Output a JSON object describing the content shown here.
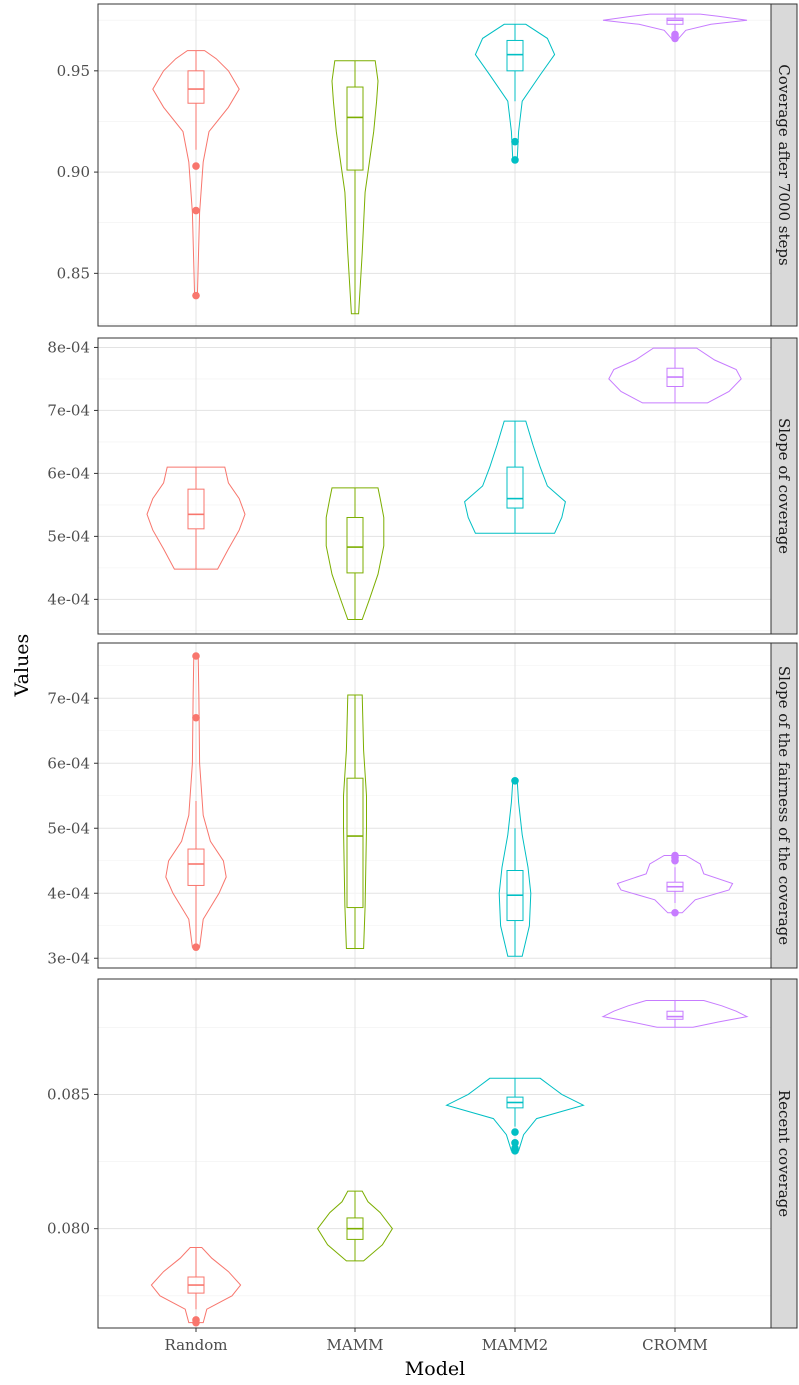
{
  "chart_data": {
    "type": "violin",
    "xlabel": "Model",
    "ylabel": "Values",
    "categories": [
      "Random",
      "MAMM",
      "MAMM2",
      "CROMM"
    ],
    "colors": {
      "Random": "#F8766D",
      "MAMM": "#7CAE00",
      "MAMM2": "#00BFC4",
      "CROMM": "#C77CFF"
    },
    "grid": true,
    "facets": [
      {
        "label": "Coverage after 7000 steps",
        "ylim": [
          0.824,
          0.983
        ],
        "yticks": [
          0.85,
          0.9,
          0.95
        ],
        "yticklabels": [
          "0.85",
          "0.90",
          "0.95"
        ],
        "series": [
          {
            "name": "Random",
            "min": 0.839,
            "max": 0.96,
            "q1": 0.934,
            "median": 0.941,
            "q3": 0.95,
            "whisker_low": 0.911,
            "whisker_high": 0.96,
            "outliers": [
              0.903,
              0.881,
              0.839
            ],
            "density": [
              [
                0.839,
                0.02
              ],
              [
                0.88,
                0.05
              ],
              [
                0.905,
                0.1
              ],
              [
                0.92,
                0.18
              ],
              [
                0.932,
                0.45
              ],
              [
                0.941,
                0.6
              ],
              [
                0.95,
                0.45
              ],
              [
                0.956,
                0.28
              ],
              [
                0.96,
                0.12
              ]
            ]
          },
          {
            "name": "MAMM",
            "min": 0.83,
            "max": 0.955,
            "q1": 0.901,
            "median": 0.927,
            "q3": 0.942,
            "whisker_low": 0.83,
            "whisker_high": 0.955,
            "outliers": [],
            "density": [
              [
                0.83,
                0.05
              ],
              [
                0.86,
                0.1
              ],
              [
                0.89,
                0.14
              ],
              [
                0.905,
                0.2
              ],
              [
                0.92,
                0.26
              ],
              [
                0.935,
                0.3
              ],
              [
                0.945,
                0.32
              ],
              [
                0.955,
                0.28
              ]
            ]
          },
          {
            "name": "MAMM2",
            "min": 0.906,
            "max": 0.973,
            "q1": 0.95,
            "median": 0.958,
            "q3": 0.965,
            "whisker_low": 0.935,
            "whisker_high": 0.973,
            "outliers": [
              0.915,
              0.906
            ],
            "density": [
              [
                0.906,
                0.03
              ],
              [
                0.92,
                0.05
              ],
              [
                0.935,
                0.1
              ],
              [
                0.948,
                0.35
              ],
              [
                0.958,
                0.55
              ],
              [
                0.966,
                0.45
              ],
              [
                0.973,
                0.15
              ]
            ]
          },
          {
            "name": "CROMM",
            "min": 0.966,
            "max": 0.978,
            "q1": 0.973,
            "median": 0.975,
            "q3": 0.976,
            "whisker_low": 0.97,
            "whisker_high": 0.978,
            "outliers": [
              0.968,
              0.967,
              0.966
            ],
            "density": [
              [
                0.966,
                0.05
              ],
              [
                0.97,
                0.15
              ],
              [
                0.973,
                0.5
              ],
              [
                0.975,
                1.0
              ],
              [
                0.977,
                0.6
              ],
              [
                0.978,
                0.35
              ]
            ]
          }
        ]
      },
      {
        "label": "Slope of coverage",
        "ylim": [
          0.000345,
          0.000815
        ],
        "yticks": [
          0.0004,
          0.0005,
          0.0006,
          0.0007,
          0.0008
        ],
        "yticklabels": [
          "4e-04",
          "5e-04",
          "6e-04",
          "7e-04",
          "8e-04"
        ],
        "series": [
          {
            "name": "Random",
            "min": 0.000448,
            "max": 0.00061,
            "q1": 0.000512,
            "median": 0.000535,
            "q3": 0.000575,
            "whisker_low": 0.000448,
            "whisker_high": 0.00061,
            "outliers": [],
            "density": [
              [
                0.000448,
                0.3
              ],
              [
                0.00048,
                0.45
              ],
              [
                0.00051,
                0.6
              ],
              [
                0.000535,
                0.68
              ],
              [
                0.00056,
                0.6
              ],
              [
                0.000585,
                0.45
              ],
              [
                0.00061,
                0.4
              ]
            ]
          },
          {
            "name": "MAMM",
            "min": 0.000368,
            "max": 0.000577,
            "q1": 0.000442,
            "median": 0.000483,
            "q3": 0.00053,
            "whisker_low": 0.000368,
            "whisker_high": 0.000577,
            "outliers": [],
            "density": [
              [
                0.000368,
                0.1
              ],
              [
                0.0004,
                0.2
              ],
              [
                0.00044,
                0.32
              ],
              [
                0.000485,
                0.4
              ],
              [
                0.00053,
                0.4
              ],
              [
                0.00056,
                0.35
              ],
              [
                0.000577,
                0.32
              ]
            ]
          },
          {
            "name": "MAMM2",
            "min": 0.000505,
            "max": 0.000683,
            "q1": 0.000545,
            "median": 0.00056,
            "q3": 0.00061,
            "whisker_low": 0.000505,
            "whisker_high": 0.000683,
            "outliers": [],
            "density": [
              [
                0.000505,
                0.55
              ],
              [
                0.00053,
                0.65
              ],
              [
                0.000555,
                0.7
              ],
              [
                0.00058,
                0.45
              ],
              [
                0.00061,
                0.35
              ],
              [
                0.000645,
                0.25
              ],
              [
                0.000683,
                0.15
              ]
            ]
          },
          {
            "name": "CROMM",
            "min": 0.000712,
            "max": 0.000799,
            "q1": 0.000738,
            "median": 0.000753,
            "q3": 0.000767,
            "whisker_low": 0.000712,
            "whisker_high": 0.000799,
            "outliers": [],
            "density": [
              [
                0.000712,
                0.45
              ],
              [
                0.00073,
                0.75
              ],
              [
                0.00075,
                0.92
              ],
              [
                0.000765,
                0.85
              ],
              [
                0.00078,
                0.55
              ],
              [
                0.000799,
                0.3
              ]
            ]
          }
        ]
      },
      {
        "label": "Slope of the fairness of the coverage",
        "ylim": [
          0.000285,
          0.000785
        ],
        "yticks": [
          0.0003,
          0.0004,
          0.0005,
          0.0006,
          0.0007
        ],
        "yticklabels": [
          "3e-04",
          "4e-04",
          "5e-04",
          "6e-04",
          "7e-04"
        ],
        "series": [
          {
            "name": "Random",
            "min": 0.000317,
            "max": 0.000765,
            "q1": 0.000412,
            "median": 0.000445,
            "q3": 0.000468,
            "whisker_low": 0.000317,
            "whisker_high": 0.000542,
            "outliers": [
              0.000317,
              0.00067,
              0.000765
            ],
            "density": [
              [
                0.000317,
                0.05
              ],
              [
                0.00036,
                0.1
              ],
              [
                0.0004,
                0.32
              ],
              [
                0.000425,
                0.42
              ],
              [
                0.00045,
                0.38
              ],
              [
                0.00048,
                0.2
              ],
              [
                0.00052,
                0.1
              ],
              [
                0.0006,
                0.05
              ],
              [
                0.0007,
                0.04
              ],
              [
                0.000765,
                0.03
              ]
            ]
          },
          {
            "name": "MAMM",
            "min": 0.000315,
            "max": 0.000705,
            "q1": 0.000378,
            "median": 0.000488,
            "q3": 0.000577,
            "whisker_low": 0.000315,
            "whisker_high": 0.000705,
            "outliers": [],
            "density": [
              [
                0.000315,
                0.12
              ],
              [
                0.00038,
                0.14
              ],
              [
                0.00044,
                0.15
              ],
              [
                0.0005,
                0.16
              ],
              [
                0.00055,
                0.16
              ],
              [
                0.00062,
                0.12
              ],
              [
                0.000705,
                0.1
              ]
            ]
          },
          {
            "name": "MAMM2",
            "min": 0.000303,
            "max": 0.000573,
            "q1": 0.000358,
            "median": 0.000397,
            "q3": 0.000435,
            "whisker_low": 0.000303,
            "whisker_high": 0.0005,
            "outliers": [
              0.000573
            ],
            "density": [
              [
                0.000303,
                0.1
              ],
              [
                0.00035,
                0.2
              ],
              [
                0.0004,
                0.22
              ],
              [
                0.00044,
                0.18
              ],
              [
                0.00049,
                0.1
              ],
              [
                0.00054,
                0.05
              ],
              [
                0.000573,
                0.03
              ]
            ]
          },
          {
            "name": "CROMM",
            "min": 0.00037,
            "max": 0.000458,
            "q1": 0.000403,
            "median": 0.00041,
            "q3": 0.000417,
            "whisker_low": 0.000385,
            "whisker_high": 0.00044,
            "outliers": [
              0.00037,
              0.00045,
              0.000455,
              0.000458
            ],
            "density": [
              [
                0.00037,
                0.1
              ],
              [
                0.00039,
                0.28
              ],
              [
                0.000405,
                0.75
              ],
              [
                0.000415,
                0.8
              ],
              [
                0.00043,
                0.4
              ],
              [
                0.000445,
                0.35
              ],
              [
                0.000458,
                0.15
              ]
            ]
          }
        ]
      },
      {
        "label": "Recent coverage",
        "ylim": [
          0.0763,
          0.0893
        ],
        "yticks": [
          0.08,
          0.085
        ],
        "yticklabels": [
          "0.080",
          "0.085"
        ],
        "series": [
          {
            "name": "Random",
            "min": 0.0765,
            "max": 0.0793,
            "q1": 0.0776,
            "median": 0.0779,
            "q3": 0.0782,
            "whisker_low": 0.077,
            "whisker_high": 0.0793,
            "outliers": [
              0.0766,
              0.0765
            ],
            "density": [
              [
                0.0765,
                0.1
              ],
              [
                0.077,
                0.15
              ],
              [
                0.0775,
                0.5
              ],
              [
                0.0779,
                0.62
              ],
              [
                0.0784,
                0.45
              ],
              [
                0.0789,
                0.22
              ],
              [
                0.0793,
                0.08
              ]
            ]
          },
          {
            "name": "MAMM",
            "min": 0.0788,
            "max": 0.0814,
            "q1": 0.0796,
            "median": 0.08,
            "q3": 0.0804,
            "whisker_low": 0.0788,
            "whisker_high": 0.0814,
            "outliers": [],
            "density": [
              [
                0.0788,
                0.12
              ],
              [
                0.0794,
                0.38
              ],
              [
                0.08,
                0.52
              ],
              [
                0.0806,
                0.35
              ],
              [
                0.081,
                0.18
              ],
              [
                0.0814,
                0.1
              ]
            ]
          },
          {
            "name": "MAMM2",
            "min": 0.0829,
            "max": 0.0856,
            "q1": 0.0845,
            "median": 0.0847,
            "q3": 0.0849,
            "whisker_low": 0.0838,
            "whisker_high": 0.0856,
            "outliers": [
              0.0836,
              0.0832,
              0.083,
              0.0829
            ],
            "density": [
              [
                0.0829,
                0.05
              ],
              [
                0.0835,
                0.12
              ],
              [
                0.0841,
                0.3
              ],
              [
                0.0846,
                0.95
              ],
              [
                0.085,
                0.65
              ],
              [
                0.0853,
                0.5
              ],
              [
                0.0856,
                0.35
              ]
            ]
          },
          {
            "name": "CROMM",
            "min": 0.0875,
            "max": 0.0885,
            "q1": 0.0878,
            "median": 0.0879,
            "q3": 0.0881,
            "whisker_low": 0.0875,
            "whisker_high": 0.0885,
            "outliers": [],
            "density": [
              [
                0.0875,
                0.25
              ],
              [
                0.0877,
                0.6
              ],
              [
                0.0879,
                1.0
              ],
              [
                0.0881,
                0.85
              ],
              [
                0.0883,
                0.65
              ],
              [
                0.0885,
                0.4
              ]
            ]
          }
        ]
      }
    ]
  }
}
